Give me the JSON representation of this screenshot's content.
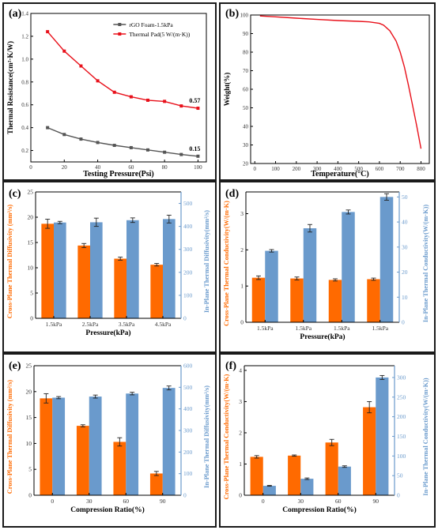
{
  "colors": {
    "orange": "#ff6a00",
    "blue": "#6a9acc",
    "red": "#e8101a",
    "gray": "#555555",
    "axis": "#000000"
  },
  "chart_data": [
    {
      "id": "a",
      "type": "line",
      "tag": "(a)",
      "xlabel": "Testing Pressure(Psi)",
      "ylabel": "Thermal Resistance(cm²·K/W)",
      "xlim": [
        0,
        105
      ],
      "ylim": [
        0.1,
        1.4
      ],
      "xticks": [
        0,
        20,
        40,
        60,
        80,
        100
      ],
      "xtick_labels": [
        "0",
        "20",
        "40",
        "60",
        "80",
        "100"
      ],
      "yticks": [
        0.2,
        0.4,
        0.6,
        0.8,
        1.0,
        1.2,
        1.4
      ],
      "ytick_labels": [
        "0.2",
        "0.4",
        "0.6",
        "0.8",
        "1.0",
        "1.2",
        "1.4"
      ],
      "legend": "top-right",
      "series": [
        {
          "name": "rGO Foam-1.5kPa",
          "color": "#555555",
          "marker": "square",
          "x": [
            10,
            20,
            30,
            40,
            50,
            60,
            70,
            80,
            90,
            100
          ],
          "values": [
            0.4,
            0.34,
            0.3,
            0.27,
            0.245,
            0.225,
            0.205,
            0.185,
            0.165,
            0.15
          ]
        },
        {
          "name": "Thermal Pad(5 W/(m·K))",
          "color": "#e8101a",
          "marker": "square",
          "x": [
            10,
            20,
            30,
            40,
            50,
            60,
            70,
            80,
            90,
            100
          ],
          "values": [
            1.24,
            1.07,
            0.94,
            0.81,
            0.71,
            0.67,
            0.64,
            0.63,
            0.59,
            0.57
          ]
        }
      ],
      "annotations": [
        {
          "text": "0.57",
          "x": 100,
          "y": 0.57
        },
        {
          "text": "0.15",
          "x": 100,
          "y": 0.15
        }
      ]
    },
    {
      "id": "b",
      "type": "line",
      "tag": "(b)",
      "xlabel": "Temperature(°C)",
      "ylabel": "Weight(%)",
      "xlim": [
        -20,
        840
      ],
      "ylim": [
        20,
        100
      ],
      "xticks": [
        0,
        100,
        200,
        300,
        400,
        500,
        600,
        700,
        800
      ],
      "xtick_labels": [
        "0",
        "100",
        "200",
        "300",
        "400",
        "500",
        "600",
        "700",
        "800"
      ],
      "yticks": [
        20,
        30,
        40,
        50,
        60,
        70,
        80,
        90,
        100
      ],
      "ytick_labels": [
        "20",
        "30",
        "40",
        "50",
        "60",
        "70",
        "80",
        "90",
        "100"
      ],
      "series": [
        {
          "color": "#e8101a",
          "x": [
            25,
            100,
            200,
            300,
            400,
            500,
            550,
            600,
            620,
            650,
            680,
            700,
            720,
            740,
            760,
            780,
            800
          ],
          "values": [
            99.5,
            99.0,
            98.3,
            97.6,
            97.0,
            96.6,
            96.3,
            95.5,
            94.5,
            91.5,
            86.0,
            80.0,
            72.0,
            62.0,
            51.0,
            40.0,
            28.0
          ]
        }
      ]
    },
    {
      "id": "c",
      "type": "bar",
      "tag": "(c)",
      "categories": [
        "1.5kPa",
        "2.5kPa",
        "3.5kPa",
        "4.5kPa"
      ],
      "xlabel": "Pressure(kPa)",
      "ylabel": "Cross-Plane Thermal Diffusivity (mm²/s)",
      "ylabel2": "In-Plane Thermal Diffusivity(mm²/s)",
      "ylim": [
        0,
        25
      ],
      "ylim2": [
        0,
        550
      ],
      "yticks": [
        0,
        5,
        10,
        15,
        20,
        25
      ],
      "ytick_labels": [
        "0",
        "5",
        "10",
        "15",
        "20",
        "25"
      ],
      "yticks2": [
        0,
        100,
        200,
        300,
        400,
        500
      ],
      "ytick_labels2": [
        "0",
        "100",
        "200",
        "300",
        "400",
        "500"
      ],
      "series": [
        {
          "axis": "left",
          "color": "#ff6a00",
          "values": [
            18.7,
            14.4,
            11.8,
            10.6
          ],
          "errors": [
            0.9,
            0.4,
            0.3,
            0.25
          ]
        },
        {
          "axis": "right",
          "color": "#6a9acc",
          "values": [
            417,
            418,
            427,
            432
          ],
          "errors": [
            5,
            18,
            10,
            17
          ]
        }
      ]
    },
    {
      "id": "d",
      "type": "bar",
      "tag": "(d)",
      "categories": [
        "1.5kPa",
        "1.5kPa",
        "1.5kPa",
        "1.5kPa"
      ],
      "xlabel": "Pressure(kPa)",
      "ylabel": "Cross-Plane Thermal Conductivity(W/(m·K)",
      "ylabel2": "In-Plane Thermal Conductivity(W/(m·K))",
      "ylim": [
        0,
        3.6
      ],
      "ylim2": [
        0,
        52
      ],
      "yticks": [
        0,
        1,
        2,
        3
      ],
      "ytick_labels": [
        "0",
        "1",
        "2",
        "3"
      ],
      "yticks2": [
        0,
        10,
        20,
        30,
        40,
        50
      ],
      "ytick_labels2": [
        "0",
        "10",
        "20",
        "30",
        "40",
        "50"
      ],
      "series": [
        {
          "axis": "left",
          "color": "#ff6a00",
          "values": [
            1.23,
            1.21,
            1.17,
            1.19
          ],
          "errors": [
            0.05,
            0.04,
            0.03,
            0.03
          ]
        },
        {
          "axis": "right",
          "color": "#6a9acc",
          "values": [
            28.5,
            37.5,
            44.0,
            50.0
          ],
          "errors": [
            0.5,
            1.5,
            0.8,
            1.3
          ]
        }
      ]
    },
    {
      "id": "e",
      "type": "bar",
      "tag": "(e)",
      "categories": [
        "0",
        "30",
        "60",
        "90"
      ],
      "xlabel": "Compression Ratio(%)",
      "ylabel": "Cross-Plane Thermal Diffusivity (mm²/s)",
      "ylabel2": "In-Plane Thermal Diffusivity(mm²/s)",
      "ylim": [
        0,
        25
      ],
      "ylim2": [
        0,
        600
      ],
      "yticks": [
        0,
        5,
        10,
        15,
        20,
        25
      ],
      "ytick_labels": [
        "0",
        "5",
        "10",
        "15",
        "20",
        "25"
      ],
      "yticks2": [
        0,
        100,
        200,
        300,
        400,
        500,
        600
      ],
      "ytick_labels2": [
        "0",
        "100",
        "200",
        "300",
        "400",
        "500",
        "600"
      ],
      "series": [
        {
          "axis": "left",
          "color": "#ff6a00",
          "values": [
            18.7,
            13.4,
            10.3,
            4.2
          ],
          "errors": [
            0.9,
            0.2,
            0.8,
            0.4
          ]
        },
        {
          "axis": "right",
          "color": "#6a9acc",
          "values": [
            452,
            457,
            471,
            497
          ],
          "errors": [
            5,
            7,
            6,
            9
          ]
        }
      ]
    },
    {
      "id": "f",
      "type": "bar",
      "tag": "(f)",
      "categories": [
        "0",
        "30",
        "60",
        "90"
      ],
      "xlabel": "Compression Ratio(%)",
      "ylabel": "Cross-Plane Thermal Conductivity(W/(m·K)",
      "ylabel2": "In-Plane Thermal Conductivity(W/(m·K))",
      "ylim": [
        0,
        4.15
      ],
      "ylim2": [
        0,
        330
      ],
      "yticks": [
        0,
        1,
        2,
        3,
        4
      ],
      "ytick_labels": [
        "0",
        "1",
        "2",
        "3",
        "4"
      ],
      "yticks2": [
        0,
        50,
        100,
        150,
        200,
        250,
        300
      ],
      "ytick_labels2": [
        "0",
        "50",
        "100",
        "150",
        "200",
        "250",
        "300"
      ],
      "series": [
        {
          "axis": "left",
          "color": "#ff6a00",
          "values": [
            1.23,
            1.27,
            1.69,
            2.82
          ],
          "errors": [
            0.04,
            0.02,
            0.1,
            0.18
          ]
        },
        {
          "axis": "right",
          "color": "#6a9acc",
          "values": [
            24,
            42,
            73,
            300
          ],
          "errors": [
            1,
            2,
            2,
            5
          ]
        }
      ]
    }
  ]
}
